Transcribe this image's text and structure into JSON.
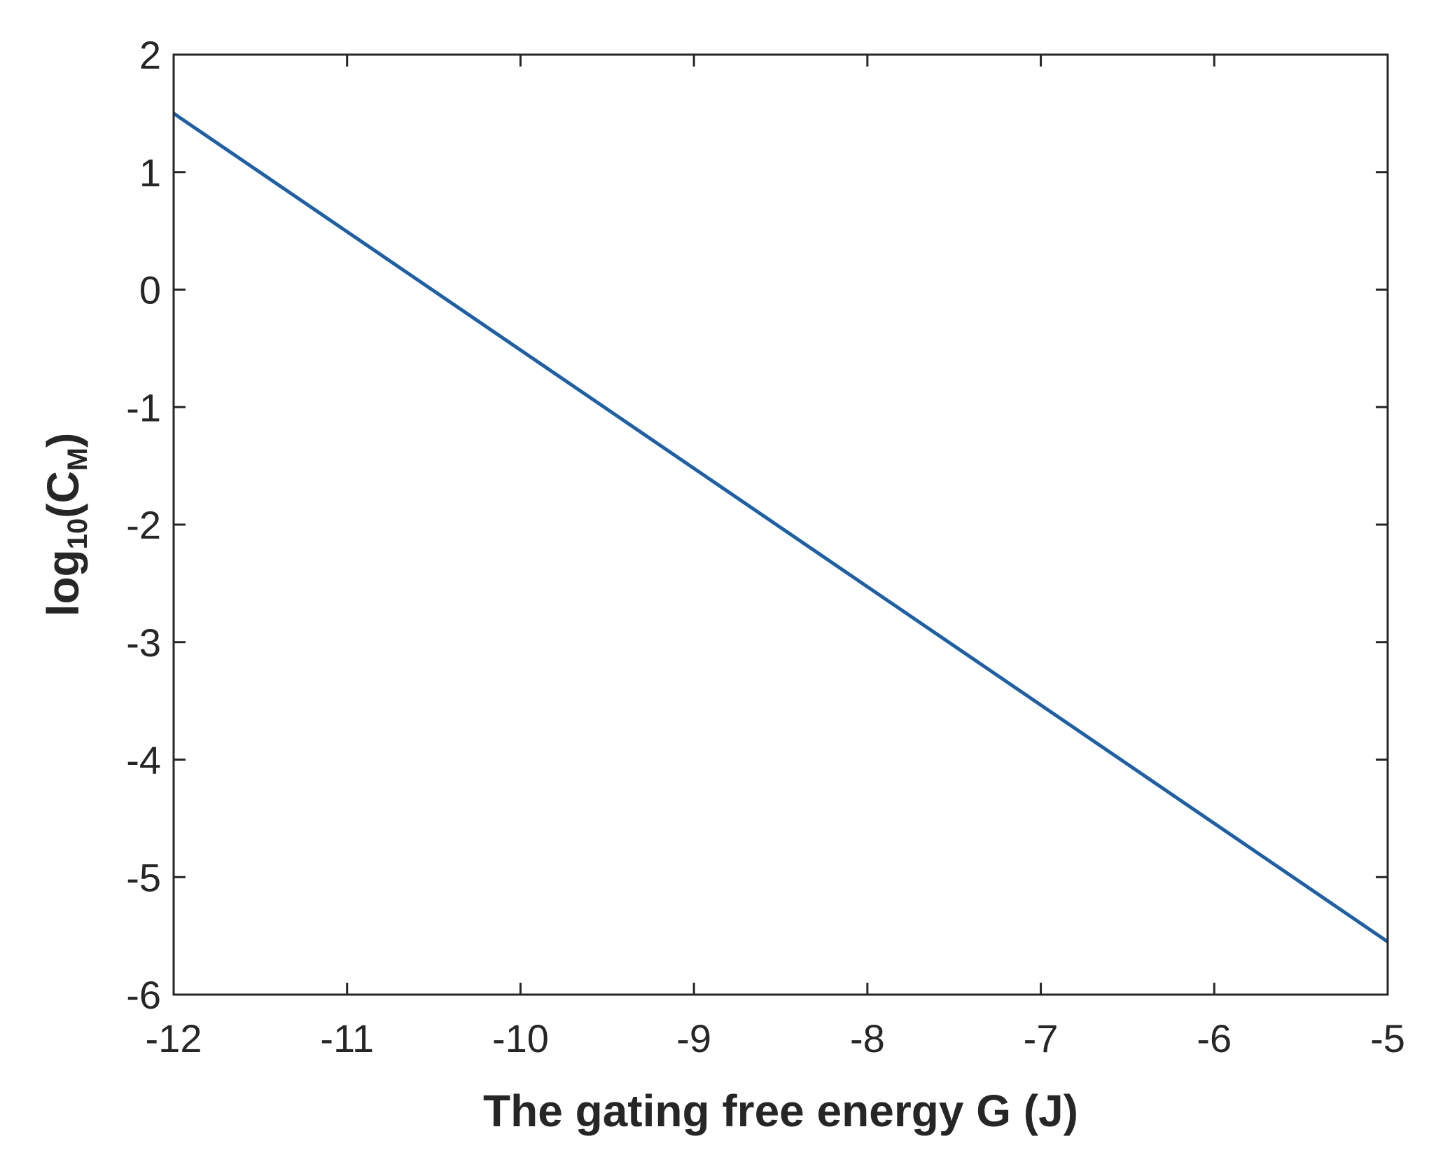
{
  "chart_data": {
    "type": "line",
    "title": "",
    "xlabel": "The gating free energy G (J)",
    "ylabel": {
      "prefix": "log",
      "prefix_sub": "10",
      "open": "(C",
      "var_sub": "M",
      "close": ")"
    },
    "xlim": [
      -12,
      -5
    ],
    "ylim": [
      -6,
      2
    ],
    "xticks": [
      -12,
      -11,
      -10,
      -9,
      -8,
      -7,
      -6,
      -5
    ],
    "yticks": [
      -6,
      -5,
      -4,
      -3,
      -2,
      -1,
      0,
      1,
      2
    ],
    "grid": false,
    "series": [
      {
        "name": "log10(CM)",
        "color": "#1f5fa3",
        "x": [
          -12,
          -5
        ],
        "y": [
          1.5,
          -5.55
        ]
      }
    ]
  }
}
